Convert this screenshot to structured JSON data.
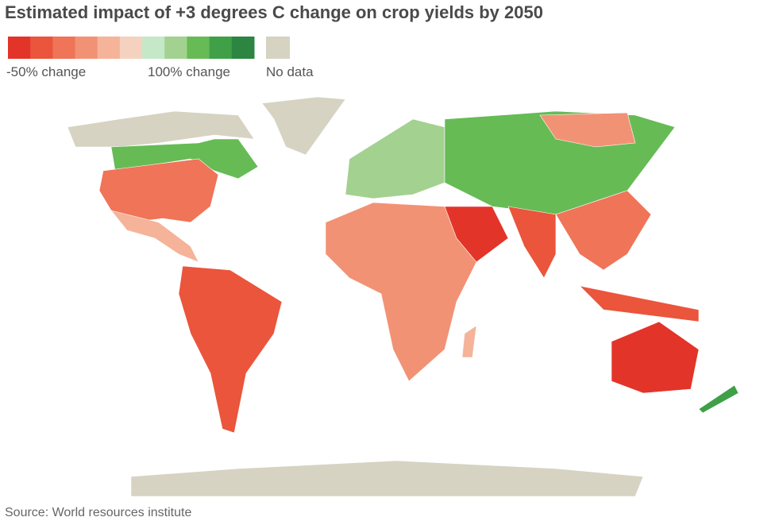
{
  "title": "Estimated impact of +3 degrees C change on crop yields by 2050",
  "legend": {
    "colors": [
      "#e3342a",
      "#ea553c",
      "#ef7458",
      "#f29275",
      "#f5b39a",
      "#f5d2c0",
      "#c5e8c8",
      "#a3d190",
      "#66bb55",
      "#3fa048",
      "#2c8540"
    ],
    "low_label": "-50% change",
    "high_label": "100% change",
    "no_data_color": "#d6d3c3",
    "no_data_label": "No data"
  },
  "source": "Source: World resources institute"
}
